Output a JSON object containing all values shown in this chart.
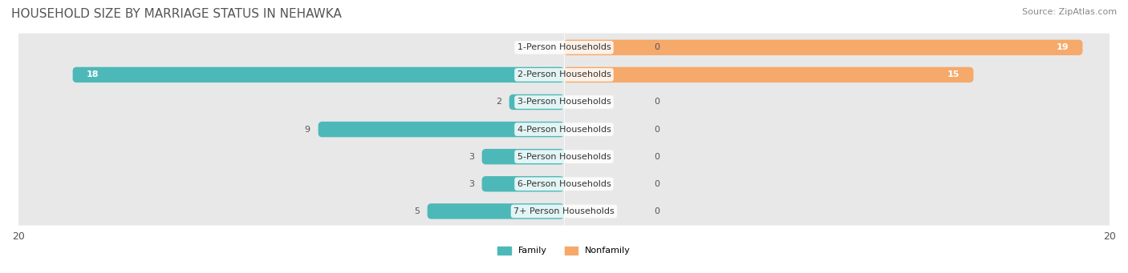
{
  "title": "HOUSEHOLD SIZE BY MARRIAGE STATUS IN NEHAWKA",
  "source": "Source: ZipAtlas.com",
  "categories": [
    "7+ Person Households",
    "6-Person Households",
    "5-Person Households",
    "4-Person Households",
    "3-Person Households",
    "2-Person Households",
    "1-Person Households"
  ],
  "family": [
    5,
    3,
    3,
    9,
    2,
    18,
    0
  ],
  "nonfamily": [
    0,
    0,
    0,
    0,
    0,
    15,
    19
  ],
  "family_color": "#4db8b8",
  "nonfamily_color": "#f5a96a",
  "xlim": 20,
  "bar_height": 0.55,
  "bg_color": "#f0f0f0",
  "row_bg": "#e8e8e8",
  "title_fontsize": 11,
  "source_fontsize": 8,
  "label_fontsize": 8,
  "tick_fontsize": 9
}
